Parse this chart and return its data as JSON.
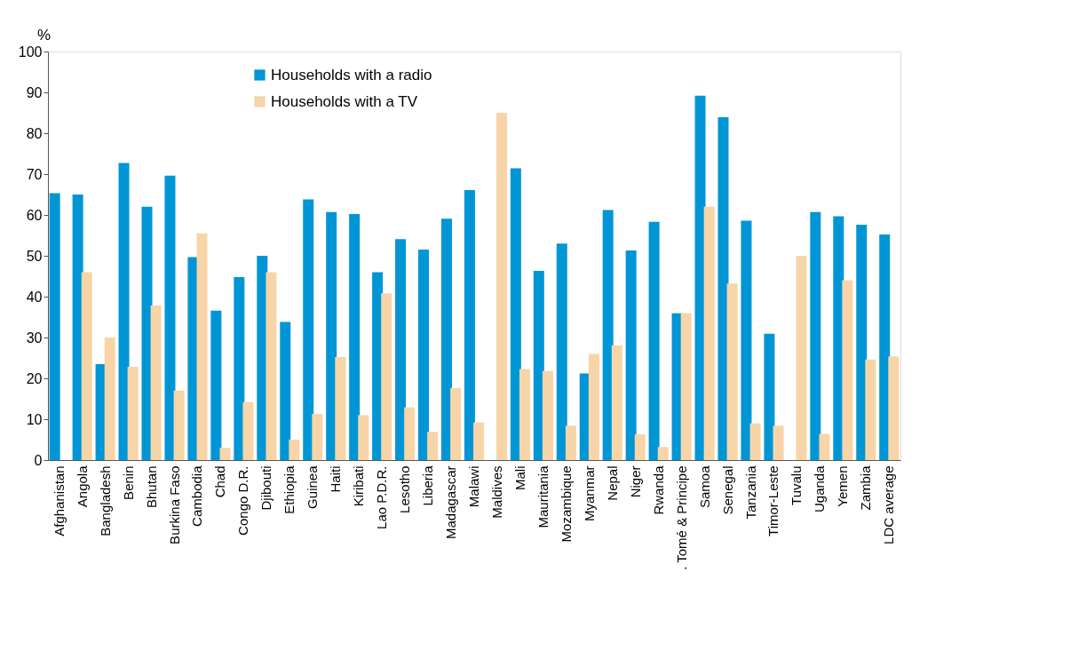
{
  "chart_data": {
    "type": "bar",
    "ylabel": "%",
    "categories": [
      "Afghanistan",
      "Angola",
      "Bangladesh",
      "Benin",
      "Bhutan",
      "Burkina Faso",
      "Cambodia",
      "Chad",
      "Congo D.R.",
      "Djibouti",
      "Ethiopia",
      "Guinea",
      "Haiti",
      "Kiribati",
      "Lao P.D.R.",
      "Lesotho",
      "Liberia",
      "Madagascar",
      "Malawi",
      "Maldives",
      "Mali",
      "Mauritania",
      "Mozambique",
      "Myanmar",
      "Nepal",
      "Niger",
      "Rwanda",
      ". Tomé & Principe",
      "Samoa",
      "Senegal",
      "Tanzania",
      "Timor-Leste",
      "Tuvalu",
      "Uganda",
      "Yemen",
      "Zambia",
      "LDC average"
    ],
    "series": [
      {
        "name": "Households with a radio",
        "color": "#0096d6",
        "values": [
          65.3,
          65,
          23.5,
          72.7,
          62,
          69.6,
          49.7,
          36.6,
          44.8,
          50,
          33.8,
          63.8,
          60.7,
          60.2,
          46,
          54.1,
          51.5,
          59.1,
          66.1,
          null,
          71.4,
          46.3,
          53,
          21.2,
          61.2,
          51.3,
          58.3,
          35.9,
          89.2,
          83.9,
          58.6,
          30.9,
          null,
          60.7,
          59.7,
          57.6,
          55.2
        ]
      },
      {
        "name": "Households with a TV",
        "color": "#f7d5a8",
        "values": [
          null,
          46,
          30,
          22.8,
          37.8,
          17,
          55.5,
          3,
          14.2,
          46,
          5,
          11.3,
          25.2,
          11,
          40.8,
          12.9,
          6.9,
          17.6,
          9.2,
          85,
          22.3,
          21.8,
          8.4,
          26,
          28.1,
          6.3,
          3.2,
          35.9,
          62,
          43.2,
          9,
          8.4,
          50,
          6.4,
          44,
          24.6,
          25.4
        ]
      }
    ],
    "ylim": [
      0,
      100
    ],
    "yticks": [
      0,
      10,
      20,
      30,
      40,
      50,
      60,
      70,
      80,
      90,
      100
    ],
    "grid": false,
    "legend": "top left"
  }
}
